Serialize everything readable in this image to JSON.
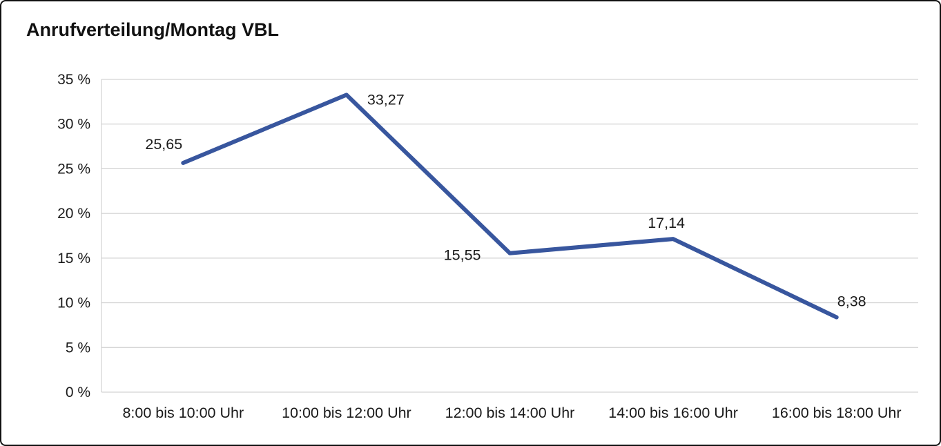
{
  "chart_data": {
    "type": "line",
    "title": "Anrufverteilung/Montag VBL",
    "categories": [
      "8:00 bis 10:00 Uhr",
      "10:00 bis 12:00 Uhr",
      "12:00 bis 14:00 Uhr",
      "14:00 bis 16:00 Uhr",
      "16:00 bis 18:00 Uhr"
    ],
    "series": [
      {
        "values": [
          25.65,
          33.27,
          15.55,
          17.14,
          8.38
        ],
        "point_labels": [
          "25,65",
          "33,27",
          "15,55",
          "17,14",
          "8,38"
        ]
      }
    ],
    "xlabel": "",
    "ylabel": "",
    "ylim": [
      0,
      35
    ],
    "ytick_step": 5,
    "ytick_labels": [
      "0 %",
      "5 %",
      "10 %",
      "15 %",
      "20 %",
      "25 %",
      "30 %",
      "35 %"
    ],
    "grid": true,
    "legend": "none",
    "colors": {
      "line": "#38569E",
      "gridline": "#c8c8c8",
      "text": "#1a1a1a",
      "frame_border": "#111111",
      "background": "#ffffff"
    }
  }
}
